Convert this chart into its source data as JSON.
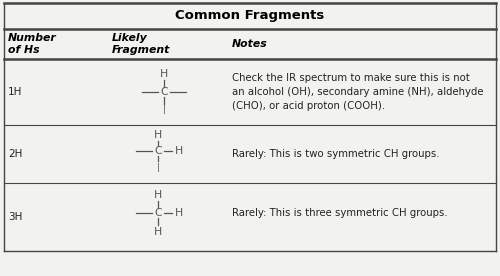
{
  "title": "Common Fragments",
  "col_headers": [
    "Number\nof Hs",
    "Likely\nFragment",
    "Notes"
  ],
  "rows": [
    {
      "num_hs": "1H",
      "notes": "Check the IR spectrum to make sure this is not\nan alcohol (OH), secondary amine (NH), aldehyde\n(CHO), or acid proton (COOH)."
    },
    {
      "num_hs": "2H",
      "notes": "Rarely: This is two symmetric CH groups."
    },
    {
      "num_hs": "3H",
      "notes": "Rarely: This is three symmetric CH groups."
    }
  ],
  "bg_color": "#f2f2ee",
  "line_color": "#444444",
  "title_color": "#000000",
  "header_color": "#000000",
  "text_color": "#222222",
  "frag_color": "#555555",
  "title_fontsize": 9.5,
  "header_fontsize": 7.8,
  "body_fontsize": 7.5,
  "frag_fontsize": 7.8,
  "notes_fontsize": 7.3
}
